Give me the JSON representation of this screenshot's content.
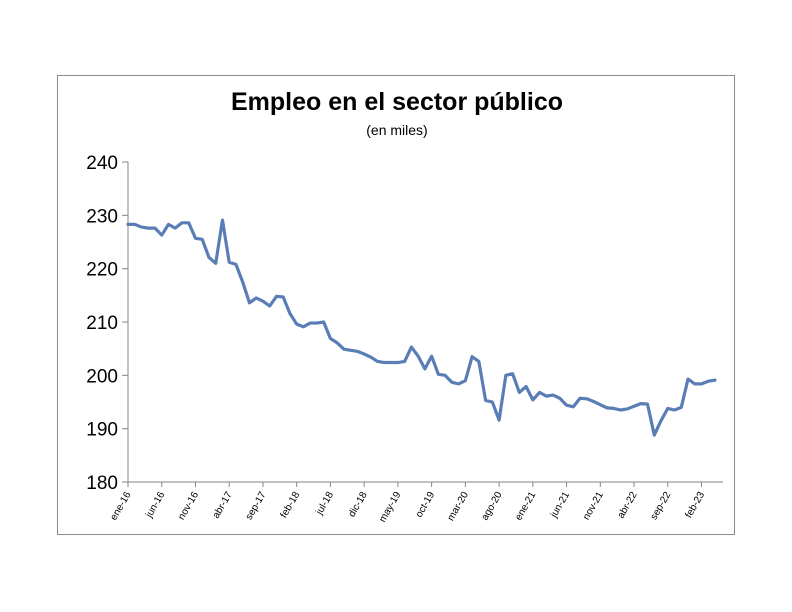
{
  "chart_data": {
    "type": "line",
    "title": "Empleo en el sector público",
    "subtitle": "(en miles)",
    "xlabel": "",
    "ylabel": "",
    "ylim": [
      180,
      240
    ],
    "yticks": [
      "180",
      "190",
      "200",
      "210",
      "220",
      "230",
      "240"
    ],
    "grid": false,
    "legend": "none",
    "line_color": "#5b7db6",
    "x_tick_labels": [
      "ene-16",
      "jun-16",
      "nov-16",
      "abr-17",
      "sep-17",
      "feb-18",
      "jul-18",
      "dic-18",
      "may-19",
      "oct-19",
      "mar-20",
      "ago-20",
      "ene-21",
      "jun-21",
      "nov-21",
      "abr-22",
      "sep-22",
      "feb-23"
    ],
    "x": [
      "ene-16",
      "feb-16",
      "mar-16",
      "abr-16",
      "may-16",
      "jun-16",
      "jul-16",
      "ago-16",
      "sep-16",
      "oct-16",
      "nov-16",
      "dic-16",
      "ene-17",
      "feb-17",
      "mar-17",
      "abr-17",
      "may-17",
      "jun-17",
      "jul-17",
      "ago-17",
      "sep-17",
      "oct-17",
      "nov-17",
      "dic-17",
      "ene-18",
      "feb-18",
      "mar-18",
      "abr-18",
      "may-18",
      "jun-18",
      "jul-18",
      "ago-18",
      "sep-18",
      "oct-18",
      "nov-18",
      "dic-18",
      "ene-19",
      "feb-19",
      "mar-19",
      "abr-19",
      "may-19",
      "jun-19",
      "jul-19",
      "ago-19",
      "sep-19",
      "oct-19",
      "nov-19",
      "dic-19",
      "ene-20",
      "feb-20",
      "mar-20",
      "abr-20",
      "may-20",
      "jun-20",
      "jul-20",
      "ago-20",
      "sep-20",
      "oct-20",
      "nov-20",
      "dic-20",
      "ene-21",
      "feb-21",
      "mar-21",
      "abr-21",
      "may-21",
      "jun-21",
      "jul-21",
      "ago-21",
      "sep-21",
      "oct-21",
      "nov-21",
      "dic-21",
      "ene-22",
      "feb-22",
      "mar-22",
      "abr-22",
      "may-22",
      "jun-22",
      "jul-22",
      "ago-22",
      "sep-22",
      "oct-22",
      "nov-22",
      "dic-22",
      "ene-23",
      "feb-23",
      "mar-23",
      "abr-23"
    ],
    "values": [
      228.3,
      228.3,
      227.8,
      227.6,
      227.6,
      226.3,
      228.3,
      227.6,
      228.6,
      228.6,
      225.7,
      225.5,
      222.1,
      221.0,
      229.1,
      221.2,
      220.8,
      217.5,
      213.6,
      214.5,
      213.9,
      213.0,
      214.8,
      214.7,
      211.6,
      209.6,
      209.1,
      209.8,
      209.8,
      210.0,
      206.9,
      206.1,
      204.9,
      204.7,
      204.5,
      204.0,
      203.4,
      202.6,
      202.4,
      202.4,
      202.4,
      202.6,
      205.3,
      203.6,
      201.2,
      203.6,
      200.2,
      200.0,
      198.7,
      198.4,
      199.0,
      203.5,
      202.6,
      195.3,
      195.0,
      191.6,
      200.0,
      200.3,
      196.8,
      197.9,
      195.4,
      196.8,
      196.1,
      196.3,
      195.7,
      194.4,
      194.1,
      195.7,
      195.6,
      195.1,
      194.5,
      193.9,
      193.8,
      193.5,
      193.7,
      194.2,
      194.7,
      194.6,
      188.8,
      191.5,
      193.8,
      193.5,
      194.0,
      199.3,
      198.4,
      198.4,
      198.9,
      199.1
    ]
  }
}
